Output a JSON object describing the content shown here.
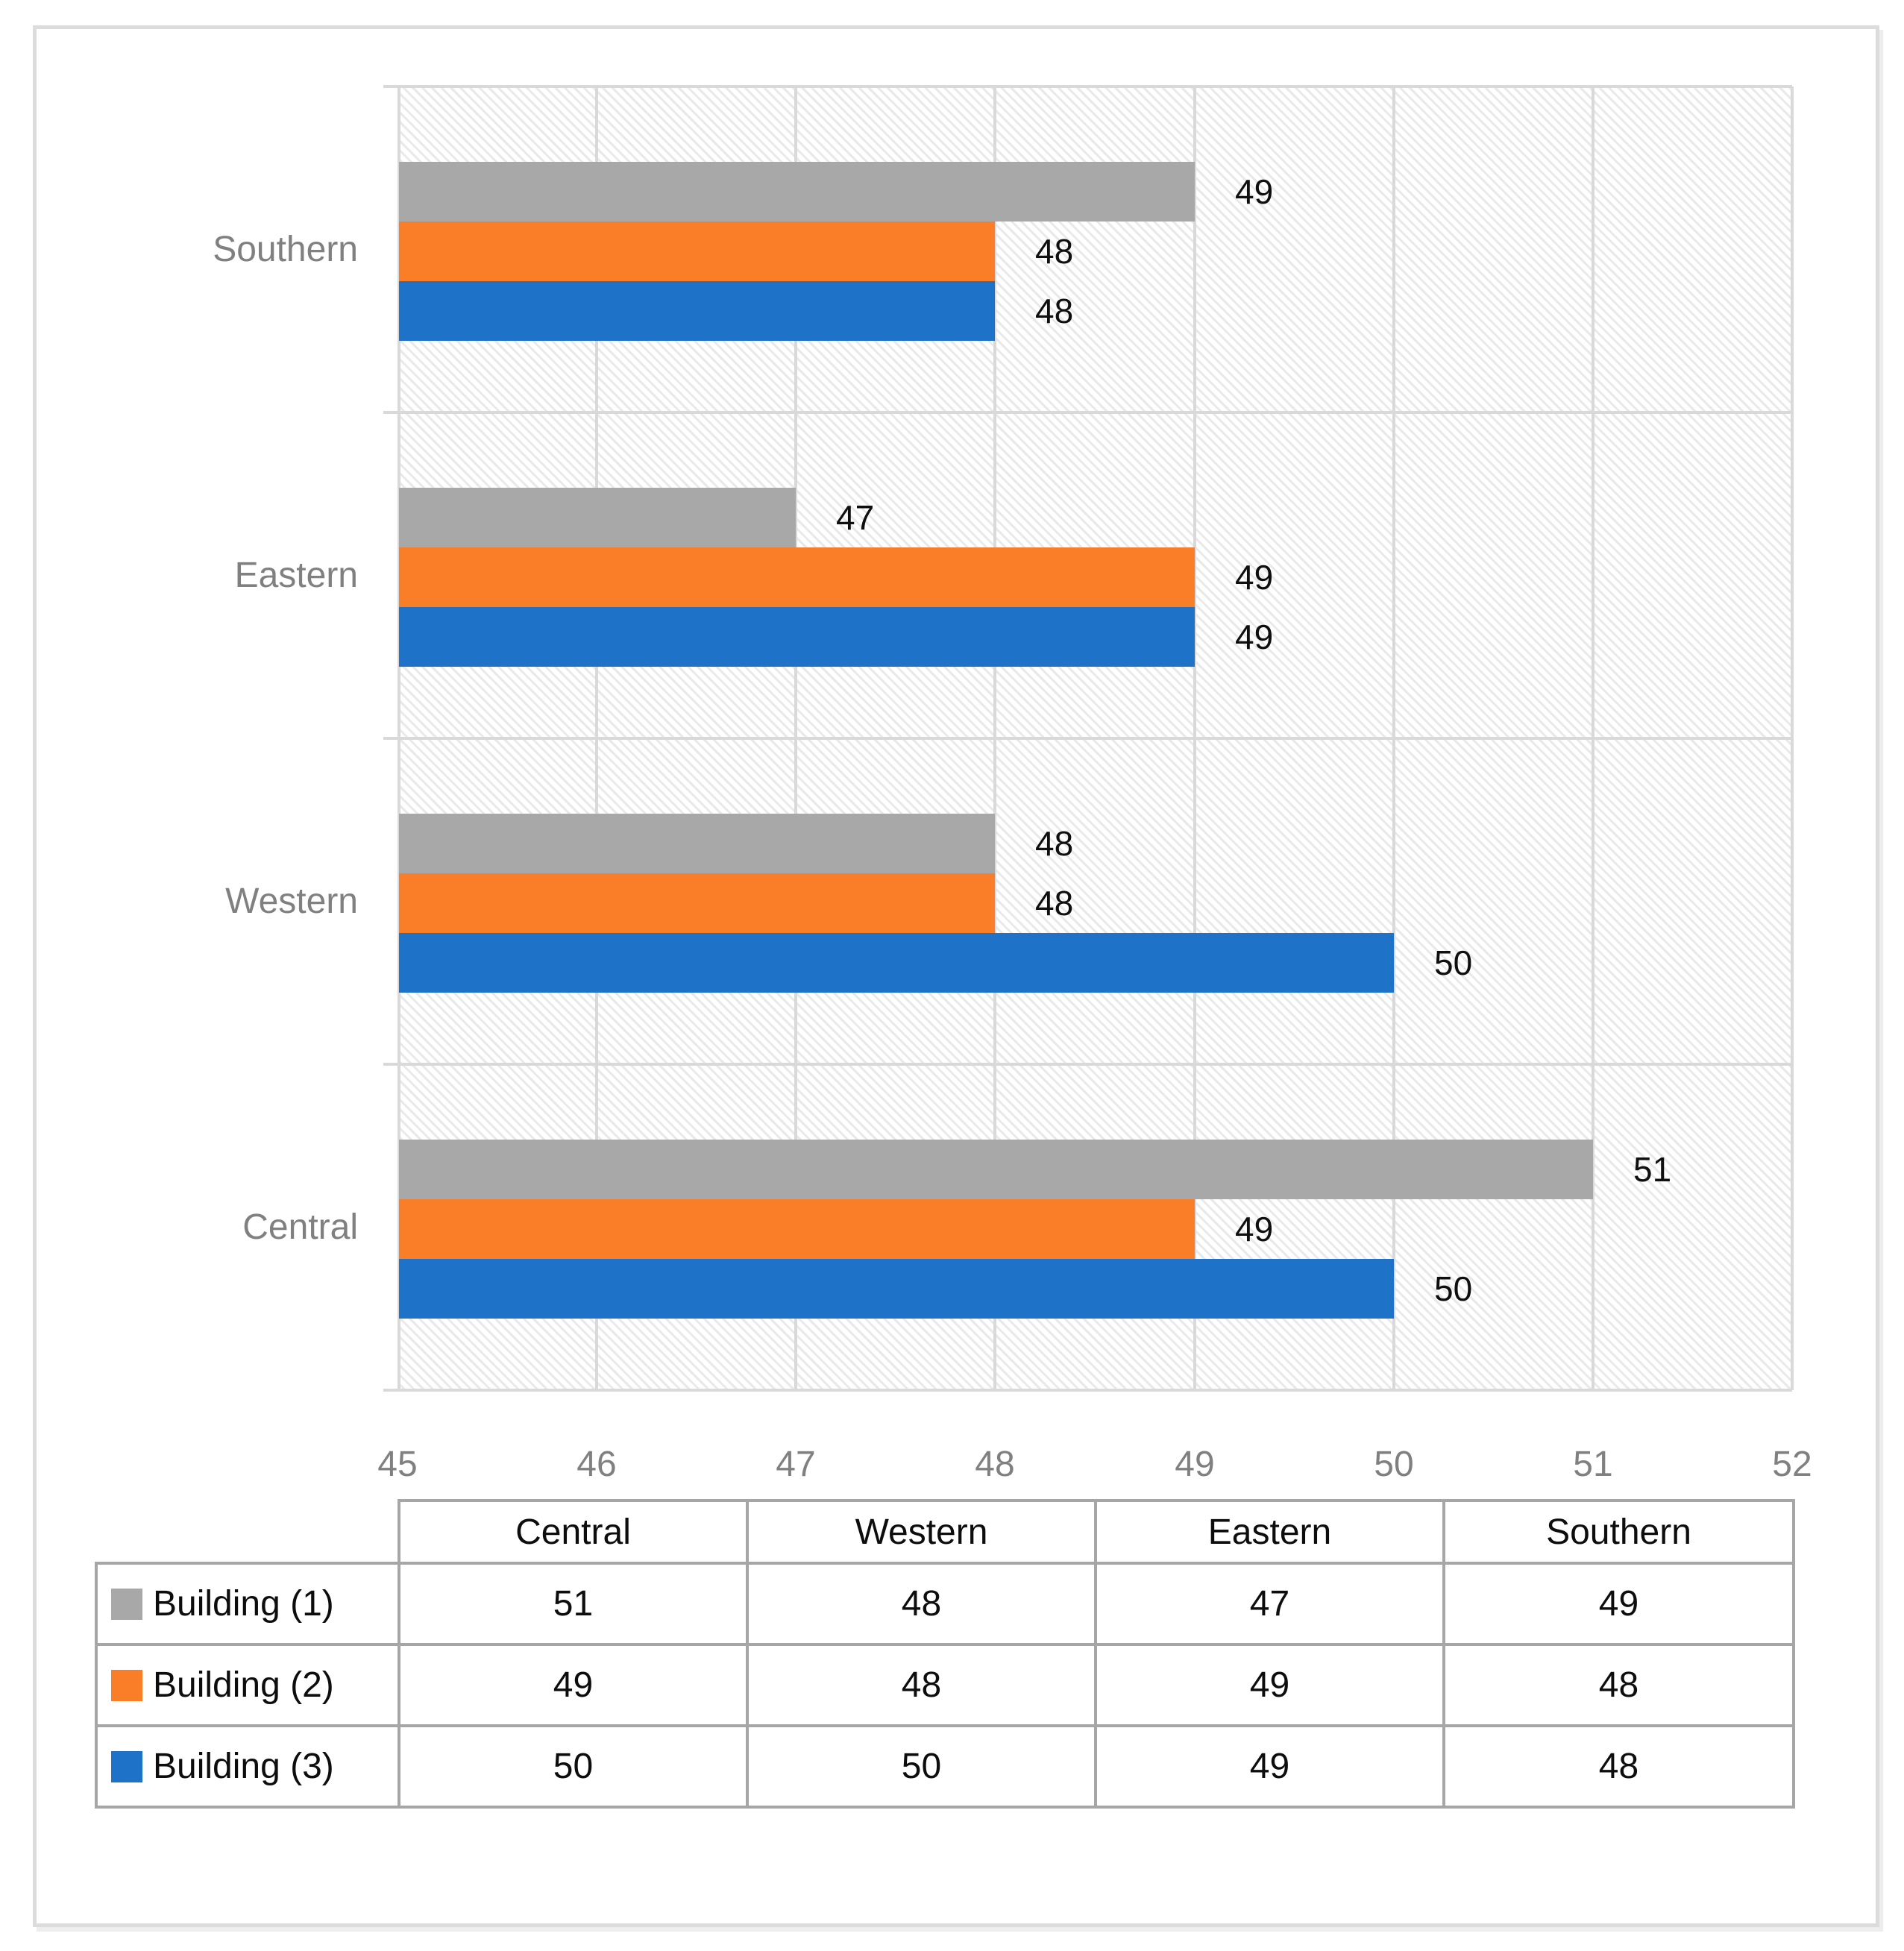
{
  "chart_data": {
    "type": "bar",
    "orientation": "horizontal-grouped",
    "title": "",
    "categories": [
      "Central",
      "Western",
      "Eastern",
      "Southern"
    ],
    "display_order_top_to_bottom": [
      "Southern",
      "Eastern",
      "Western",
      "Central"
    ],
    "series": [
      {
        "name": "Building (1)",
        "color": "#a8a8a8",
        "values": [
          51,
          48,
          47,
          49
        ]
      },
      {
        "name": "Building (2)",
        "color": "#f97e27",
        "values": [
          49,
          48,
          49,
          48
        ]
      },
      {
        "name": "Building (3)",
        "color": "#1e73c8",
        "values": [
          50,
          50,
          49,
          48
        ]
      }
    ],
    "xlim": [
      45,
      52
    ],
    "x_ticks": [
      "45",
      "46",
      "47",
      "48",
      "49",
      "50",
      "51",
      "52"
    ],
    "grid": true,
    "data_labels": true,
    "plot_background": "light-diagonal-hatch",
    "legend_position": "data-table-left"
  },
  "table": {
    "col_headers": [
      "Central",
      "Western",
      "Eastern",
      "Southern"
    ],
    "rows": [
      {
        "label": "Building (1)",
        "swatch_color": "#a8a8a8",
        "values": [
          "51",
          "48",
          "47",
          "49"
        ]
      },
      {
        "label": "Building (2)",
        "swatch_color": "#f97e27",
        "values": [
          "49",
          "48",
          "49",
          "48"
        ]
      },
      {
        "label": "Building (3)",
        "swatch_color": "#1e73c8",
        "values": [
          "50",
          "50",
          "49",
          "48"
        ]
      }
    ]
  },
  "colors": {
    "gridline": "#d9d9d9",
    "axis_text": "#808080",
    "data_label_text": "#0f0f0f",
    "table_border": "#a6a6a6",
    "hatch_line": "#e9e9e9",
    "frame_border": "#dcdcdc",
    "background": "#ffffff"
  }
}
